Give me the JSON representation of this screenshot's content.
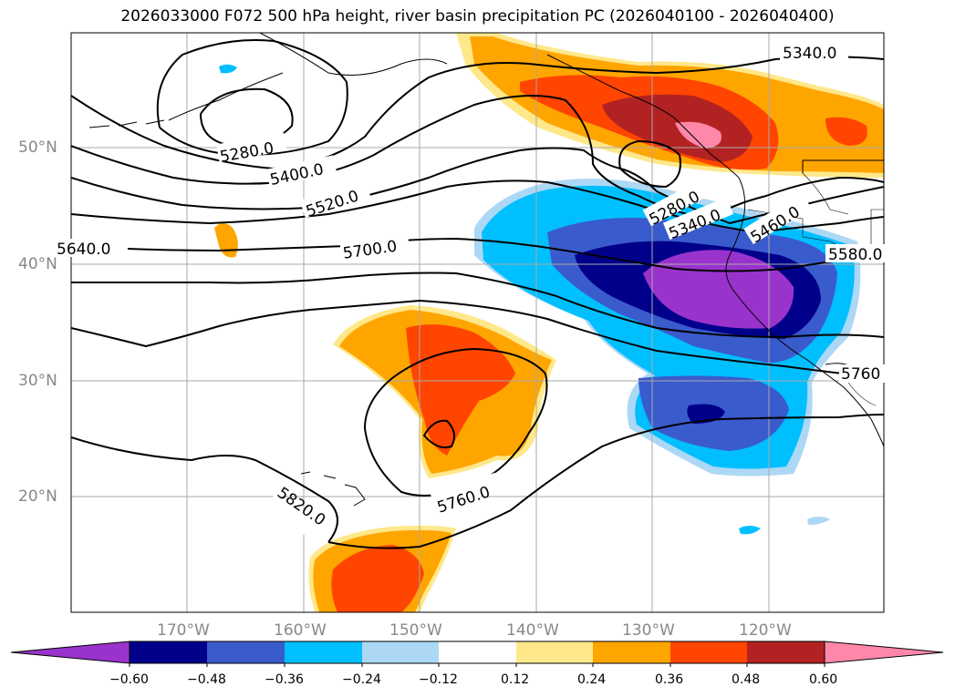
{
  "title": "2026033000 F072 500 hPa height, river basin precipitation PC (2026040100 - 2026040400)",
  "latitude_labels": [
    "50°N",
    "40°N",
    "30°N",
    "20°N"
  ],
  "longitude_labels": [
    "170°W",
    "160°W",
    "150°W",
    "140°W",
    "130°W",
    "120°W"
  ],
  "contour_labels": [
    "5340.0",
    "5280.0",
    "5400.0",
    "5520.0",
    "5280.0",
    "5340.0",
    "5460.0",
    "5640.0",
    "5700.0",
    "5580.0",
    "5760",
    "5760.0",
    "5820.0"
  ],
  "colorbar": {
    "tick_labels": [
      "−0.60",
      "−0.48",
      "−0.36",
      "−0.24",
      "−0.12",
      "0.12",
      "0.24",
      "0.36",
      "0.48",
      "0.60"
    ],
    "colors": [
      "#9933cc",
      "#00008b",
      "#3a5bcc",
      "#00bfff",
      "#add8f5",
      "#ffffff",
      "#ffe88a",
      "#ffa500",
      "#ff4500",
      "#b22222",
      "#ff88aa"
    ]
  },
  "map_colors": {
    "pos_light": "#ffe88a",
    "pos_orange": "#ffa500",
    "pos_red": "#ff4500",
    "pos_dark": "#b22222",
    "pos_pink": "#ff88aa",
    "neg_light": "#add8f5",
    "neg_sky": "#00bfff",
    "neg_blue": "#3a5bcc",
    "neg_navy": "#00008b",
    "neg_purple": "#9933cc"
  }
}
